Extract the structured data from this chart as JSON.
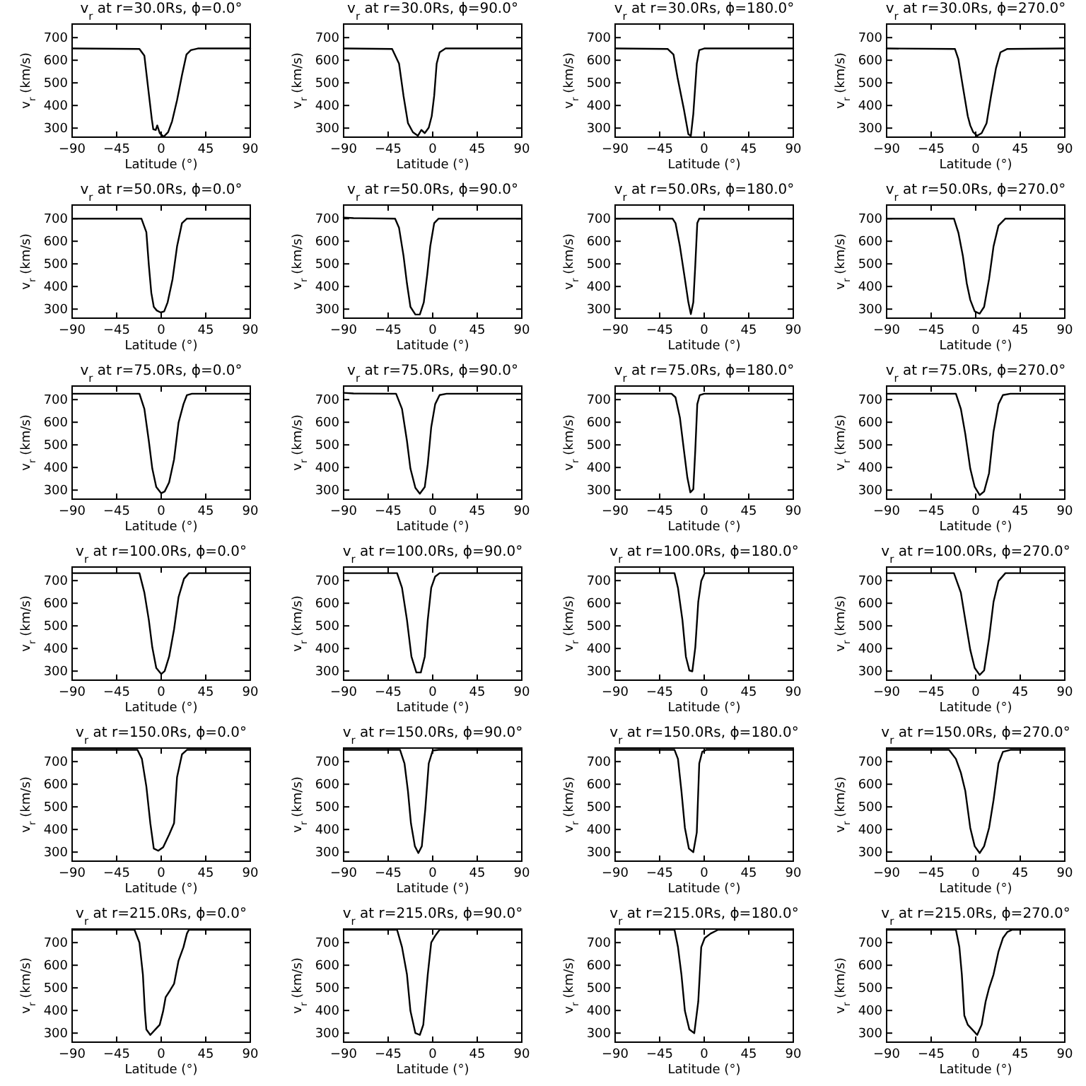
{
  "chart_data": [
    {
      "type": "line",
      "title": "v$_{r}$ at r=30.0Rs, ϕ=0.0°",
      "xlabel": "Latitude (°)",
      "ylabel": "v$_{r}$ (km/s)",
      "xlim": [
        -90,
        90
      ],
      "xticks": [
        -90,
        -45,
        0,
        45,
        90
      ],
      "ylim": [
        260,
        760
      ],
      "yticks": [
        300,
        400,
        500,
        600,
        700
      ],
      "series": [
        {
          "color": "#000000",
          "x": [
            -90,
            -22,
            -17,
            -13,
            -9.5,
            -8,
            -5.5,
            -4,
            -1.5,
            2.5,
            7,
            11,
            16,
            21,
            25.5,
            30,
            37,
            90
          ],
          "values": [
            652,
            650,
            620,
            470,
            340,
            295,
            292,
            312,
            278,
            262,
            282,
            330,
            423,
            534,
            625,
            645,
            652,
            652
          ]
        }
      ]
    },
    {
      "type": "line",
      "title": "v$_{r}$ at r=30.0Rs, ϕ=90.0°",
      "xlabel": "Latitude (°)",
      "ylabel": "v$_{r}$ (km/s)",
      "xlim": [
        -90,
        90
      ],
      "xticks": [
        -90,
        -45,
        0,
        45,
        90
      ],
      "ylim": [
        260,
        760
      ],
      "yticks": [
        300,
        400,
        500,
        600,
        700
      ],
      "series": [
        {
          "color": "#000000",
          "x": [
            -90,
            -41,
            -34,
            -29.5,
            -25,
            -20,
            -15,
            -11.5,
            -8,
            -4,
            -1,
            1.5,
            4,
            7,
            13,
            90
          ],
          "values": [
            652,
            650,
            585,
            443,
            322,
            282,
            266,
            292,
            278,
            302,
            353,
            443,
            585,
            635,
            652,
            652
          ]
        }
      ]
    },
    {
      "type": "line",
      "title": "v$_{r}$ at r=30.0Rs, ϕ=180.0°",
      "xlabel": "Latitude (°)",
      "ylabel": "v$_{r}$ (km/s)",
      "xlim": [
        -90,
        90
      ],
      "xticks": [
        -90,
        -45,
        0,
        45,
        90
      ],
      "ylim": [
        260,
        760
      ],
      "yticks": [
        300,
        400,
        500,
        600,
        700
      ],
      "series": [
        {
          "color": "#000000",
          "x": [
            -90,
            -37,
            -31,
            -27,
            -20.5,
            -16,
            -13.5,
            -11,
            -7.5,
            -5,
            0,
            90
          ],
          "values": [
            652,
            650,
            625,
            525,
            383,
            273,
            265,
            363,
            585,
            645,
            652,
            652
          ]
        }
      ]
    },
    {
      "type": "line",
      "title": "v$_{r}$ at r=30.0Rs, ϕ=270.0°",
      "xlabel": "Latitude (°)",
      "ylabel": "v$_{r}$ (km/s)",
      "xlim": [
        -90,
        90
      ],
      "xticks": [
        -90,
        -45,
        0,
        45,
        90
      ],
      "ylim": [
        260,
        760
      ],
      "yticks": [
        300,
        400,
        500,
        600,
        700
      ],
      "series": [
        {
          "color": "#000000",
          "x": [
            -90,
            -21,
            -17.5,
            -13,
            -8,
            -5.5,
            -2.5,
            1.5,
            6,
            11,
            15.5,
            20.5,
            25,
            32,
            90
          ],
          "values": [
            652,
            650,
            605,
            484,
            353,
            312,
            282,
            266,
            278,
            322,
            443,
            565,
            635,
            650,
            652
          ]
        }
      ]
    },
    {
      "type": "line",
      "title": "v$_{r}$ at r=50.0Rs, ϕ=0.0°",
      "xlabel": "Latitude (°)",
      "ylabel": "v$_{r}$ (km/s)",
      "xlim": [
        -90,
        90
      ],
      "xticks": [
        -90,
        -45,
        0,
        45,
        90
      ],
      "ylim": [
        260,
        760
      ],
      "yticks": [
        300,
        400,
        500,
        600,
        700
      ],
      "series": [
        {
          "color": "#000000",
          "x": [
            -90,
            -20,
            -15,
            -12.5,
            -10,
            -7.5,
            -4.5,
            -0.5,
            3,
            6.5,
            11.5,
            16,
            21,
            26,
            90
          ],
          "values": [
            700,
            700,
            640,
            495,
            372,
            310,
            294,
            285,
            290,
            330,
            433,
            577,
            680,
            700,
            700
          ]
        }
      ]
    },
    {
      "type": "line",
      "title": "v$_{r}$ at r=50.0Rs, ϕ=90.0°",
      "xlabel": "Latitude (°)",
      "ylabel": "v$_{r}$ (km/s)",
      "xlim": [
        -90,
        90
      ],
      "xticks": [
        -90,
        -45,
        0,
        45,
        90
      ],
      "ylim": [
        260,
        760
      ],
      "yticks": [
        300,
        400,
        500,
        600,
        700
      ],
      "series": [
        {
          "color": "#000000",
          "x": [
            -90,
            -80,
            -38,
            -34,
            -29.5,
            -26,
            -22.5,
            -17.5,
            -13,
            -9,
            -5.5,
            -2.5,
            1.5,
            6,
            90
          ],
          "values": [
            705,
            702,
            700,
            659,
            536,
            413,
            310,
            276,
            276,
            330,
            454,
            577,
            680,
            700,
            700
          ]
        }
      ]
    },
    {
      "type": "line",
      "title": "v$_{r}$ at r=50.0Rs, ϕ=180.0°",
      "xlabel": "Latitude (°)",
      "ylabel": "v$_{r}$ (km/s)",
      "xlim": [
        -90,
        90
      ],
      "xticks": [
        -90,
        -45,
        0,
        45,
        90
      ],
      "ylim": [
        260,
        760
      ],
      "yticks": [
        300,
        400,
        500,
        600,
        700
      ],
      "series": [
        {
          "color": "#000000",
          "x": [
            -90,
            -32,
            -29,
            -24.5,
            -19.5,
            -16,
            -13.5,
            -11,
            -9,
            -7,
            -5,
            90
          ],
          "values": [
            700,
            700,
            680,
            577,
            433,
            330,
            278,
            330,
            495,
            680,
            700,
            700
          ]
        }
      ]
    },
    {
      "type": "line",
      "title": "v$_{r}$ at r=50.0Rs, ϕ=270.0°",
      "xlabel": "Latitude (°)",
      "ylabel": "v$_{r}$ (km/s)",
      "xlim": [
        -90,
        90
      ],
      "xticks": [
        -90,
        -45,
        0,
        45,
        90
      ],
      "ylim": [
        260,
        760
      ],
      "yticks": [
        300,
        400,
        500,
        600,
        700
      ],
      "series": [
        {
          "color": "#000000",
          "x": [
            -90,
            -22,
            -17.5,
            -13,
            -9,
            -5.5,
            -1,
            4,
            8.5,
            13.5,
            18,
            23,
            30,
            90
          ],
          "values": [
            700,
            700,
            638,
            536,
            413,
            341,
            290,
            280,
            310,
            433,
            577,
            669,
            700,
            700
          ]
        }
      ]
    },
    {
      "type": "line",
      "title": "v$_{r}$ at r=75.0Rs, ϕ=0.0°",
      "xlabel": "Latitude (°)",
      "ylabel": "v$_{r}$ (km/s)",
      "xlim": [
        -90,
        90
      ],
      "xticks": [
        -90,
        -45,
        0,
        45,
        90
      ],
      "ylim": [
        260,
        760
      ],
      "yticks": [
        300,
        400,
        500,
        600,
        700
      ],
      "series": [
        {
          "color": "#000000",
          "x": [
            -90,
            -22,
            -17,
            -12.5,
            -9,
            -5,
            0,
            3.5,
            8,
            13,
            17.5,
            22.5,
            26,
            31,
            90
          ],
          "values": [
            726,
            726,
            659,
            517,
            395,
            314,
            286,
            294,
            334,
            436,
            598,
            680,
            720,
            726,
            726
          ]
        }
      ]
    },
    {
      "type": "line",
      "title": "v$_{r}$ at r=75.0Rs, ϕ=90.0°",
      "xlabel": "Latitude (°)",
      "ylabel": "v$_{r}$ (km/s)",
      "xlim": [
        -90,
        90
      ],
      "xticks": [
        -90,
        -45,
        0,
        45,
        90
      ],
      "ylim": [
        260,
        760
      ],
      "yticks": [
        300,
        400,
        500,
        600,
        700
      ],
      "series": [
        {
          "color": "#000000",
          "x": [
            -90,
            -80,
            -37,
            -31,
            -26,
            -22.5,
            -17.5,
            -13,
            -8,
            -5,
            -1.5,
            2.5,
            7,
            14,
            90
          ],
          "values": [
            730,
            727,
            726,
            659,
            517,
            395,
            310,
            284,
            314,
            415,
            578,
            680,
            720,
            726,
            726
          ]
        }
      ]
    },
    {
      "type": "line",
      "title": "v$_{r}$ at r=75.0Rs, ϕ=180.0°",
      "xlabel": "Latitude (°)",
      "ylabel": "v$_{r}$ (km/s)",
      "xlim": [
        -90,
        90
      ],
      "xticks": [
        -90,
        -45,
        0,
        45,
        90
      ],
      "ylim": [
        260,
        760
      ],
      "yticks": [
        300,
        400,
        500,
        600,
        700
      ],
      "series": [
        {
          "color": "#000000",
          "x": [
            -90,
            -33,
            -29,
            -24.5,
            -20.5,
            -17,
            -14,
            -11,
            -9,
            -7,
            -4.5,
            0,
            90
          ],
          "values": [
            726,
            726,
            710,
            619,
            477,
            355,
            290,
            304,
            477,
            680,
            720,
            726,
            726
          ]
        }
      ]
    },
    {
      "type": "line",
      "title": "v$_{r}$ at r=75.0Rs, ϕ=270.0°",
      "xlabel": "Latitude (°)",
      "ylabel": "v$_{r}$ (km/s)",
      "xlim": [
        -90,
        90
      ],
      "xticks": [
        -90,
        -45,
        0,
        45,
        90
      ],
      "ylim": [
        260,
        760
      ],
      "yticks": [
        300,
        400,
        500,
        600,
        700
      ],
      "series": [
        {
          "color": "#000000",
          "x": [
            -90,
            -20,
            -15,
            -10.5,
            -5.5,
            -1,
            4,
            8.5,
            13.5,
            18,
            23,
            27.5,
            35,
            90
          ],
          "values": [
            726,
            726,
            659,
            548,
            395,
            314,
            278,
            294,
            375,
            558,
            680,
            720,
            726,
            726
          ]
        }
      ]
    },
    {
      "type": "line",
      "title": "v$_{r}$ at r=100.0Rs, ϕ=0.0°",
      "xlabel": "Latitude (°)",
      "ylabel": "v$_{r}$ (km/s)",
      "xlim": [
        -90,
        90
      ],
      "xticks": [
        -90,
        -45,
        0,
        45,
        90
      ],
      "ylim": [
        260,
        760
      ],
      "yticks": [
        300,
        400,
        500,
        600,
        700
      ],
      "series": [
        {
          "color": "#000000",
          "x": [
            -90,
            -22,
            -17,
            -12.5,
            -9,
            -5,
            0,
            3.5,
            8,
            13,
            17.5,
            23,
            28,
            90
          ],
          "values": [
            733,
            733,
            647,
            526,
            405,
            314,
            287,
            300,
            364,
            485,
            627,
            708,
            733,
            733
          ]
        }
      ]
    },
    {
      "type": "line",
      "title": "v$_{r}$ at r=100.0Rs, ϕ=90.0°",
      "xlabel": "Latitude (°)",
      "ylabel": "v$_{r}$ (km/s)",
      "xlim": [
        -90,
        90
      ],
      "xticks": [
        -90,
        -45,
        0,
        45,
        90
      ],
      "ylim": [
        260,
        760
      ],
      "yticks": [
        300,
        400,
        500,
        600,
        700
      ],
      "series": [
        {
          "color": "#000000",
          "x": [
            -90,
            -36,
            -31,
            -26,
            -21.5,
            -16.5,
            -12,
            -8,
            -5,
            -1.5,
            2.5,
            7,
            90
          ],
          "values": [
            733,
            733,
            668,
            526,
            364,
            294,
            294,
            364,
            526,
            668,
            718,
            733,
            733
          ]
        }
      ]
    },
    {
      "type": "line",
      "title": "v$_{r}$ at r=100.0Rs, ϕ=180.0°",
      "xlabel": "Latitude (°)",
      "ylabel": "v$_{r}$ (km/s)",
      "xlim": [
        -90,
        90
      ],
      "xticks": [
        -90,
        -45,
        0,
        45,
        90
      ],
      "ylim": [
        260,
        760
      ],
      "yticks": [
        300,
        400,
        500,
        600,
        700
      ],
      "series": [
        {
          "color": "#000000",
          "x": [
            -90,
            -30,
            -26.5,
            -22,
            -18.5,
            -15,
            -12,
            -9,
            -6,
            -3,
            0.5,
            90
          ],
          "values": [
            733,
            733,
            668,
            526,
            364,
            303,
            299,
            405,
            606,
            698,
            733,
            733
          ]
        }
      ]
    },
    {
      "type": "line",
      "title": "v$_{r}$ at r=100.0Rs, ϕ=270.0°",
      "xlabel": "Latitude (°)",
      "ylabel": "v$_{r}$ (km/s)",
      "xlim": [
        -90,
        90
      ],
      "xticks": [
        -90,
        -45,
        0,
        45,
        90
      ],
      "ylim": [
        260,
        760
      ],
      "yticks": [
        300,
        400,
        500,
        600,
        700
      ],
      "series": [
        {
          "color": "#000000",
          "x": [
            -90,
            -22,
            -15,
            -10.5,
            -5.5,
            -1,
            4,
            8.5,
            13.5,
            18,
            23,
            30,
            90
          ],
          "values": [
            733,
            733,
            647,
            526,
            394,
            314,
            283,
            303,
            444,
            606,
            698,
            733,
            733
          ]
        }
      ]
    },
    {
      "type": "line",
      "title": "v$_{r}$ at r=150.0Rs, ϕ=0.0°",
      "xlabel": "Latitude (°)",
      "ylabel": "v$_{r}$ (km/s)",
      "xlim": [
        -90,
        90
      ],
      "xticks": [
        -90,
        -45,
        0,
        45,
        90
      ],
      "ylim": [
        260,
        760
      ],
      "yticks": [
        300,
        400,
        500,
        600,
        700
      ],
      "series": [
        {
          "color": "#000000",
          "x": [
            -90,
            -24,
            -19.5,
            -15,
            -11,
            -7.5,
            -3,
            2,
            8,
            13,
            16,
            21,
            26,
            90
          ],
          "values": [
            752,
            752,
            712,
            590,
            428,
            316,
            306,
            322,
            377,
            428,
            631,
            732,
            752,
            752
          ]
        }
      ]
    },
    {
      "type": "line",
      "title": "v$_{r}$ at r=150.0Rs, ϕ=90.0°",
      "xlabel": "Latitude (°)",
      "ylabel": "v$_{r}$ (km/s)",
      "xlim": [
        -90,
        90
      ],
      "xticks": [
        -90,
        -45,
        0,
        45,
        90
      ],
      "ylim": [
        260,
        760
      ],
      "yticks": [
        300,
        400,
        500,
        600,
        700
      ],
      "series": [
        {
          "color": "#000000",
          "x": [
            -90,
            -33,
            -28.5,
            -25,
            -22,
            -18,
            -14.5,
            -11,
            -7.5,
            -4,
            0,
            6,
            90
          ],
          "values": [
            752,
            752,
            692,
            570,
            428,
            326,
            296,
            326,
            489,
            692,
            749,
            752,
            752
          ]
        }
      ]
    },
    {
      "type": "line",
      "title": "v$_{r}$ at r=150.0Rs, ϕ=180.0°",
      "xlabel": "Latitude (°)",
      "ylabel": "v$_{r}$ (km/s)",
      "xlim": [
        -90,
        90
      ],
      "xticks": [
        -90,
        -45,
        0,
        45,
        90
      ],
      "ylim": [
        260,
        760
      ],
      "yticks": [
        300,
        400,
        500,
        600,
        700
      ],
      "series": [
        {
          "color": "#000000",
          "x": [
            -90,
            -30,
            -26.5,
            -23,
            -19.5,
            -15.5,
            -11,
            -7.5,
            -5,
            -2,
            2,
            90
          ],
          "values": [
            752,
            752,
            712,
            570,
            407,
            316,
            300,
            387,
            692,
            743,
            752,
            752
          ]
        }
      ]
    },
    {
      "type": "line",
      "title": "v$_{r}$ at r=150.0Rs, ϕ=270.0°",
      "xlabel": "Latitude (°)",
      "ylabel": "v$_{r}$ (km/s)",
      "xlim": [
        -90,
        90
      ],
      "xticks": [
        -90,
        -45,
        0,
        45,
        90
      ],
      "ylim": [
        260,
        760
      ],
      "yticks": [
        300,
        400,
        500,
        600,
        700
      ],
      "series": [
        {
          "color": "#000000",
          "x": [
            -90,
            -27,
            -20,
            -15,
            -10.5,
            -5.5,
            -1,
            4,
            8.5,
            13.5,
            18,
            23,
            27.5,
            35,
            90
          ],
          "values": [
            752,
            752,
            712,
            651,
            570,
            407,
            326,
            296,
            326,
            407,
            529,
            692,
            743,
            752,
            752
          ]
        }
      ]
    },
    {
      "type": "line",
      "title": "v$_{r}$ at r=215.0Rs, ϕ=0.0°",
      "xlabel": "Latitude (°)",
      "ylabel": "v$_{r}$ (km/s)",
      "xlim": [
        -90,
        90
      ],
      "xticks": [
        -90,
        -45,
        0,
        45,
        90
      ],
      "ylim": [
        260,
        760
      ],
      "yticks": [
        300,
        400,
        500,
        600,
        700
      ],
      "series": [
        {
          "color": "#000000",
          "x": [
            -90,
            -27,
            -22,
            -18.5,
            -16.5,
            -15,
            -11,
            -6,
            -1.5,
            2,
            4.5,
            9,
            13,
            17.5,
            22.5,
            26,
            28,
            90
          ],
          "values": [
            757,
            757,
            700,
            559,
            398,
            316,
            292,
            316,
            337,
            398,
            459,
            489,
            518,
            620,
            680,
            740,
            757,
            757
          ]
        }
      ]
    },
    {
      "type": "line",
      "title": "v$_{r}$ at r=215.0Rs, ϕ=90.0°",
      "xlabel": "Latitude (°)",
      "ylabel": "v$_{r}$ (km/s)",
      "xlim": [
        -90,
        90
      ],
      "xticks": [
        -90,
        -45,
        0,
        45,
        90
      ],
      "ylim": [
        260,
        760
      ],
      "yticks": [
        300,
        400,
        500,
        600,
        700
      ],
      "series": [
        {
          "color": "#000000",
          "x": [
            -90,
            -36,
            -31,
            -26,
            -22.5,
            -17.5,
            -13,
            -9.5,
            -5,
            -1.5,
            2.5,
            7,
            90
          ],
          "values": [
            757,
            757,
            680,
            559,
            398,
            300,
            292,
            337,
            559,
            700,
            730,
            757,
            757
          ]
        }
      ]
    },
    {
      "type": "line",
      "title": "v$_{r}$ at r=215.0Rs, ϕ=180.0°",
      "xlabel": "Latitude (°)",
      "ylabel": "v$_{r}$ (km/s)",
      "xlim": [
        -90,
        90
      ],
      "xticks": [
        -90,
        -45,
        0,
        45,
        90
      ],
      "ylim": [
        260,
        760
      ],
      "yticks": [
        300,
        400,
        500,
        600,
        700
      ],
      "series": [
        {
          "color": "#000000",
          "x": [
            -90,
            -30,
            -26.5,
            -23,
            -19.5,
            -15,
            -10,
            -6,
            -3,
            0.5,
            6.5,
            14,
            90
          ],
          "values": [
            757,
            757,
            680,
            559,
            398,
            316,
            300,
            439,
            680,
            720,
            740,
            757,
            757
          ]
        }
      ]
    },
    {
      "type": "line",
      "title": "v$_{r}$ at r=215.0Rs, ϕ=270.0°",
      "xlabel": "Latitude (°)",
      "ylabel": "v$_{r}$ (km/s)",
      "xlim": [
        -90,
        90
      ],
      "xticks": [
        -90,
        -45,
        0,
        45,
        90
      ],
      "ylim": [
        260,
        760
      ],
      "yticks": [
        300,
        400,
        500,
        600,
        700
      ],
      "series": [
        {
          "color": "#000000",
          "x": [
            -90,
            -20,
            -16.5,
            -14,
            -11.5,
            -8,
            -3.5,
            1.5,
            6,
            10,
            13.5,
            18,
            23,
            27.5,
            32,
            37,
            90
          ],
          "values": [
            757,
            757,
            680,
            559,
            378,
            337,
            316,
            292,
            337,
            439,
            499,
            559,
            660,
            720,
            747,
            757,
            757
          ]
        }
      ]
    }
  ]
}
